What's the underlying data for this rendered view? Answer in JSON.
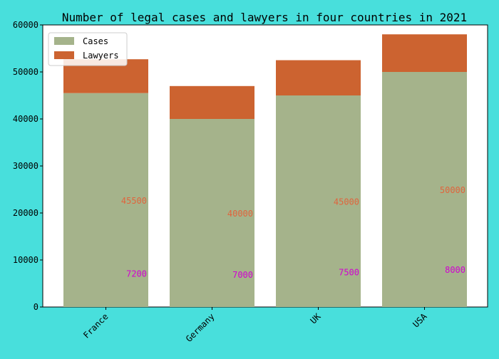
{
  "chart_data": {
    "type": "bar",
    "stacked": true,
    "title": "Number of legal cases and lawyers in four countries in 2021",
    "categories": [
      "France",
      "Germany",
      "UK",
      "USA"
    ],
    "series": [
      {
        "name": "Cases",
        "values": [
          45500,
          40000,
          45000,
          50000
        ],
        "color": "#a5b38b",
        "label_color": "#e0643c"
      },
      {
        "name": "Lawyers",
        "values": [
          7200,
          7000,
          7500,
          8000
        ],
        "color": "#cc6330",
        "label_color": "#d200d2"
      }
    ],
    "data_labels": {
      "Cases": [
        "45500",
        "40000",
        "45000",
        "50000"
      ],
      "Lawyers": [
        "7200",
        "7000",
        "7500",
        "8000"
      ]
    },
    "ylim": [
      0,
      60000
    ],
    "yticks": [
      0,
      10000,
      20000,
      30000,
      40000,
      50000,
      60000
    ],
    "xlabel": "",
    "ylabel": "",
    "legend_position": "upper-left",
    "grid": false,
    "background_color": "#48dfdc",
    "plot_background_color": "#ffffff"
  }
}
